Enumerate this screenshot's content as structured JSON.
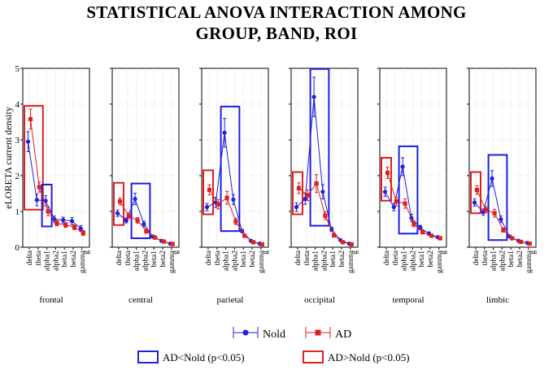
{
  "title_line1": "STATISTICAL ANOVA INTERACTION AMONG",
  "title_line2": "GROUP, BAND, ROI",
  "colors": {
    "nold": "#1f1fe0",
    "ad": "#e01f1f",
    "axis": "#000000",
    "grid": "#bdbdbd"
  },
  "chart_data": {
    "type": "line",
    "title": "STATISTICAL ANOVA INTERACTION AMONG GROUP, BAND, ROI",
    "ylabel": "eLORETA current density",
    "ylim": [
      0,
      5
    ],
    "yticks": [
      0,
      1,
      2,
      3,
      4,
      5
    ],
    "categories": [
      "delta",
      "theta",
      "alpha1",
      "alpha2",
      "beta1",
      "beta2",
      "gamma"
    ],
    "extra_tick": "g",
    "legend": [
      {
        "name": "Nold",
        "marker": "circle",
        "color": "#1f1fe0"
      },
      {
        "name": "AD",
        "marker": "square",
        "color": "#e01f1f"
      }
    ],
    "box_legend": [
      {
        "label": "AD<Nold (p<0.05)",
        "color": "#1f1fe0"
      },
      {
        "label": "AD>Nold (p<0.05)",
        "color": "#e01f1f"
      }
    ],
    "panels": [
      {
        "roi": "frontal",
        "nold": [
          2.95,
          1.32,
          1.3,
          0.78,
          0.76,
          0.73,
          0.52
        ],
        "nold_err": [
          0.28,
          0.16,
          0.14,
          0.09,
          0.08,
          0.1,
          0.08
        ],
        "ad": [
          3.58,
          1.68,
          1.0,
          0.67,
          0.62,
          0.56,
          0.4
        ],
        "ad_err": [
          0.28,
          0.14,
          0.12,
          0.07,
          0.07,
          0.07,
          0.07
        ],
        "sig_boxes": [
          {
            "type": "AD>Nold",
            "from": "delta",
            "to": "theta",
            "ymin": 1.05,
            "ymax": 3.95
          },
          {
            "type": "AD<Nold",
            "from": "alpha1",
            "to": "alpha1",
            "ymin": 0.58,
            "ymax": 1.75
          }
        ]
      },
      {
        "roi": "central",
        "nold": [
          0.95,
          0.75,
          1.35,
          0.65,
          0.3,
          0.18,
          0.1
        ],
        "nold_err": [
          0.09,
          0.07,
          0.16,
          0.08,
          0.04,
          0.03,
          0.02
        ],
        "ad": [
          1.28,
          0.88,
          0.75,
          0.45,
          0.27,
          0.16,
          0.09
        ],
        "ad_err": [
          0.1,
          0.08,
          0.08,
          0.06,
          0.04,
          0.03,
          0.02
        ],
        "sig_boxes": [
          {
            "type": "AD>Nold",
            "from": "delta",
            "to": "delta",
            "ymin": 0.62,
            "ymax": 1.8
          },
          {
            "type": "AD<Nold",
            "from": "alpha1",
            "to": "alpha2",
            "ymin": 0.25,
            "ymax": 1.78
          }
        ]
      },
      {
        "roi": "parietal",
        "nold": [
          1.12,
          1.25,
          3.2,
          1.33,
          0.45,
          0.18,
          0.1
        ],
        "nold_err": [
          0.1,
          0.14,
          0.4,
          0.14,
          0.05,
          0.03,
          0.02
        ],
        "ad": [
          1.6,
          1.2,
          1.38,
          0.72,
          0.32,
          0.14,
          0.08
        ],
        "ad_err": [
          0.14,
          0.13,
          0.18,
          0.09,
          0.04,
          0.03,
          0.02
        ],
        "sig_boxes": [
          {
            "type": "AD>Nold",
            "from": "delta",
            "to": "delta",
            "ymin": 0.92,
            "ymax": 2.15
          },
          {
            "type": "AD<Nold",
            "from": "alpha1",
            "to": "alpha2",
            "ymin": 0.45,
            "ymax": 3.93
          }
        ]
      },
      {
        "roi": "occipital",
        "nold": [
          1.12,
          1.35,
          4.2,
          1.55,
          0.5,
          0.2,
          0.1
        ],
        "nold_err": [
          0.12,
          0.15,
          0.55,
          0.2,
          0.06,
          0.03,
          0.02
        ],
        "ad": [
          1.65,
          1.45,
          1.78,
          0.88,
          0.33,
          0.14,
          0.08
        ],
        "ad_err": [
          0.15,
          0.15,
          0.25,
          0.11,
          0.05,
          0.03,
          0.02
        ],
        "sig_boxes": [
          {
            "type": "AD>Nold",
            "from": "delta",
            "to": "delta",
            "ymin": 0.92,
            "ymax": 2.1
          },
          {
            "type": "AD<Nold",
            "from": "alpha1",
            "to": "alpha2",
            "ymin": 0.6,
            "ymax": 4.98
          }
        ]
      },
      {
        "roi": "temporal",
        "nold": [
          1.55,
          1.12,
          2.25,
          0.82,
          0.55,
          0.38,
          0.28
        ],
        "nold_err": [
          0.13,
          0.1,
          0.25,
          0.1,
          0.06,
          0.05,
          0.04
        ],
        "ad": [
          2.08,
          1.28,
          1.22,
          0.65,
          0.42,
          0.32,
          0.25
        ],
        "ad_err": [
          0.16,
          0.12,
          0.13,
          0.08,
          0.05,
          0.04,
          0.04
        ],
        "sig_boxes": [
          {
            "type": "AD>Nold",
            "from": "delta",
            "to": "delta",
            "ymin": 1.3,
            "ymax": 2.5
          },
          {
            "type": "AD<Nold",
            "from": "alpha1",
            "to": "alpha2",
            "ymin": 0.38,
            "ymax": 2.82
          }
        ]
      },
      {
        "roi": "limbic",
        "nold": [
          1.25,
          0.98,
          1.92,
          0.78,
          0.3,
          0.18,
          0.12
        ],
        "nold_err": [
          0.1,
          0.09,
          0.22,
          0.09,
          0.04,
          0.03,
          0.02
        ],
        "ad": [
          1.6,
          1.05,
          0.95,
          0.48,
          0.25,
          0.15,
          0.1
        ],
        "ad_err": [
          0.12,
          0.09,
          0.11,
          0.06,
          0.04,
          0.03,
          0.02
        ],
        "sig_boxes": [
          {
            "type": "AD>Nold",
            "from": "delta",
            "to": "delta",
            "ymin": 0.95,
            "ymax": 2.1
          },
          {
            "type": "AD<Nold",
            "from": "alpha1",
            "to": "alpha2",
            "ymin": 0.2,
            "ymax": 2.58
          }
        ]
      }
    ]
  }
}
